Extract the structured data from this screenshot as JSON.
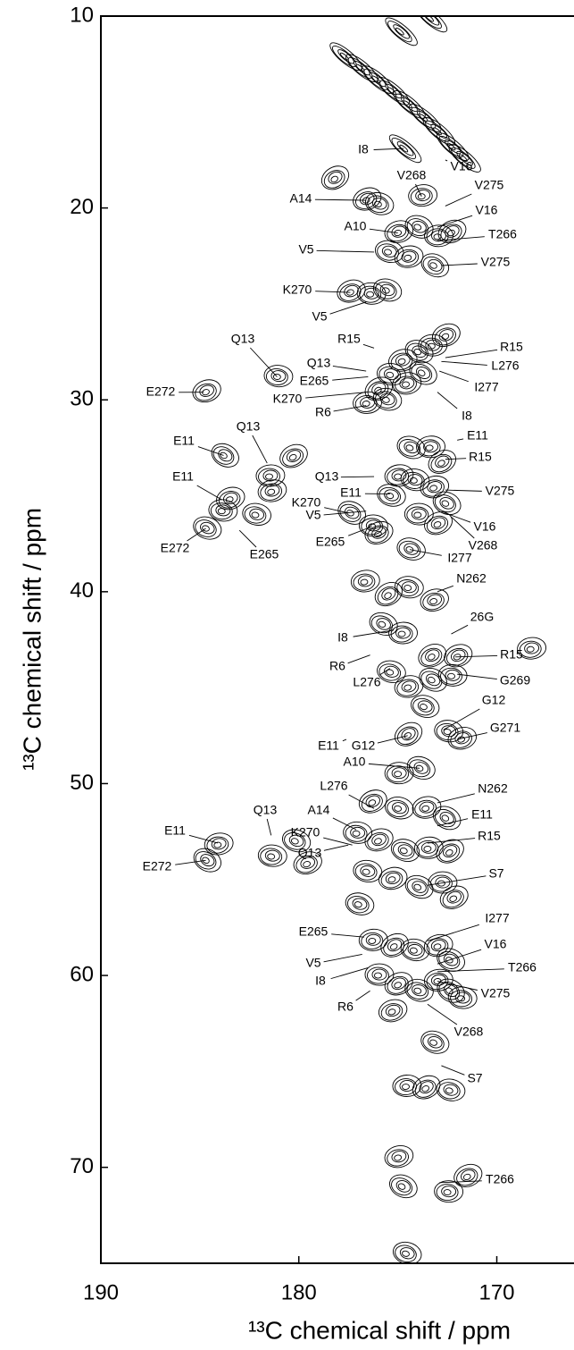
{
  "chart_data": {
    "type": "contour",
    "x_label": "¹³C chemical shift / ppm",
    "y_label": "¹³C chemical shift / ppm",
    "xlim": [
      190,
      166.1
    ],
    "ylim": [
      10,
      75
    ],
    "xticks": [
      190,
      180,
      170
    ],
    "yticks": [
      10,
      20,
      30,
      40,
      50,
      60,
      70
    ],
    "color": "#000000",
    "peaks": [
      {
        "x": 177.7,
        "y": 12.1
      },
      {
        "x": 176.9,
        "y": 12.7
      },
      {
        "x": 176.1,
        "y": 13.3
      },
      {
        "x": 175.3,
        "y": 13.9
      },
      {
        "x": 174.5,
        "y": 14.6
      },
      {
        "x": 173.7,
        "y": 15.3
      },
      {
        "x": 173.0,
        "y": 16.0
      },
      {
        "x": 172.3,
        "y": 16.8
      },
      {
        "x": 171.7,
        "y": 17.4
      },
      {
        "x": 174.7,
        "y": 16.9
      },
      {
        "x": 176.6,
        "y": 19.6
      },
      {
        "x": 176.0,
        "y": 19.8
      },
      {
        "x": 173.8,
        "y": 19.4
      },
      {
        "x": 178.2,
        "y": 18.5
      },
      {
        "x": 174.9,
        "y": 10.8
      },
      {
        "x": 175.0,
        "y": 21.3
      },
      {
        "x": 174.0,
        "y": 21.0
      },
      {
        "x": 173.0,
        "y": 21.5
      },
      {
        "x": 172.3,
        "y": 21.3
      },
      {
        "x": 175.5,
        "y": 22.3
      },
      {
        "x": 174.5,
        "y": 22.6
      },
      {
        "x": 173.2,
        "y": 23.0
      },
      {
        "x": 176.4,
        "y": 24.5
      },
      {
        "x": 177.4,
        "y": 24.4
      },
      {
        "x": 175.6,
        "y": 24.3
      },
      {
        "x": 176.6,
        "y": 30.2
      },
      {
        "x": 176.0,
        "y": 29.5
      },
      {
        "x": 175.4,
        "y": 28.7
      },
      {
        "x": 174.8,
        "y": 28.0
      },
      {
        "x": 174.0,
        "y": 27.5
      },
      {
        "x": 173.3,
        "y": 27.2
      },
      {
        "x": 172.6,
        "y": 26.7
      },
      {
        "x": 175.6,
        "y": 30.0
      },
      {
        "x": 174.6,
        "y": 29.2
      },
      {
        "x": 173.8,
        "y": 28.6
      },
      {
        "x": 181.1,
        "y": 28.8
      },
      {
        "x": 184.7,
        "y": 29.6
      },
      {
        "x": 174.4,
        "y": 32.5
      },
      {
        "x": 173.4,
        "y": 32.5
      },
      {
        "x": 172.8,
        "y": 33.3
      },
      {
        "x": 174.2,
        "y": 34.2
      },
      {
        "x": 173.2,
        "y": 34.6
      },
      {
        "x": 172.6,
        "y": 35.4
      },
      {
        "x": 174.0,
        "y": 36.0
      },
      {
        "x": 173.0,
        "y": 36.5
      },
      {
        "x": 175.4,
        "y": 35.0
      },
      {
        "x": 175.0,
        "y": 34.0
      },
      {
        "x": 183.8,
        "y": 32.9
      },
      {
        "x": 183.9,
        "y": 35.8
      },
      {
        "x": 183.5,
        "y": 35.2
      },
      {
        "x": 184.7,
        "y": 36.7
      },
      {
        "x": 181.5,
        "y": 34.0
      },
      {
        "x": 180.3,
        "y": 33.0
      },
      {
        "x": 182.2,
        "y": 36.0
      },
      {
        "x": 181.4,
        "y": 34.8
      },
      {
        "x": 177.4,
        "y": 35.9
      },
      {
        "x": 176.3,
        "y": 36.6
      },
      {
        "x": 176.0,
        "y": 37.0
      },
      {
        "x": 174.4,
        "y": 37.8
      },
      {
        "x": 176.7,
        "y": 39.5
      },
      {
        "x": 175.5,
        "y": 40.2
      },
      {
        "x": 174.5,
        "y": 39.8
      },
      {
        "x": 173.2,
        "y": 40.5
      },
      {
        "x": 175.8,
        "y": 41.7
      },
      {
        "x": 174.8,
        "y": 42.2
      },
      {
        "x": 173.3,
        "y": 43.4
      },
      {
        "x": 175.4,
        "y": 44.2
      },
      {
        "x": 174.5,
        "y": 45.0
      },
      {
        "x": 173.3,
        "y": 44.6
      },
      {
        "x": 172.3,
        "y": 44.4
      },
      {
        "x": 172.0,
        "y": 43.4
      },
      {
        "x": 173.7,
        "y": 46.0
      },
      {
        "x": 168.3,
        "y": 43.0
      },
      {
        "x": 174.5,
        "y": 47.5
      },
      {
        "x": 172.5,
        "y": 47.3
      },
      {
        "x": 171.8,
        "y": 47.7
      },
      {
        "x": 173.9,
        "y": 49.2
      },
      {
        "x": 175.0,
        "y": 49.5
      },
      {
        "x": 176.3,
        "y": 51.0
      },
      {
        "x": 175.0,
        "y": 51.3
      },
      {
        "x": 173.6,
        "y": 51.3
      },
      {
        "x": 172.6,
        "y": 51.8
      },
      {
        "x": 177.1,
        "y": 52.6
      },
      {
        "x": 176.0,
        "y": 53.0
      },
      {
        "x": 174.7,
        "y": 53.5
      },
      {
        "x": 173.5,
        "y": 53.4
      },
      {
        "x": 172.4,
        "y": 53.6
      },
      {
        "x": 176.6,
        "y": 54.6
      },
      {
        "x": 175.3,
        "y": 55.0
      },
      {
        "x": 174.0,
        "y": 55.4
      },
      {
        "x": 172.8,
        "y": 55.2
      },
      {
        "x": 172.2,
        "y": 56.0
      },
      {
        "x": 177.0,
        "y": 56.3
      },
      {
        "x": 184.1,
        "y": 53.2
      },
      {
        "x": 184.7,
        "y": 54.0
      },
      {
        "x": 181.4,
        "y": 53.8
      },
      {
        "x": 179.6,
        "y": 54.2
      },
      {
        "x": 180.2,
        "y": 53.0
      },
      {
        "x": 176.3,
        "y": 58.2
      },
      {
        "x": 175.2,
        "y": 58.5
      },
      {
        "x": 174.2,
        "y": 58.7
      },
      {
        "x": 173.0,
        "y": 58.5
      },
      {
        "x": 172.4,
        "y": 59.2
      },
      {
        "x": 176.0,
        "y": 60.0
      },
      {
        "x": 175.0,
        "y": 60.5
      },
      {
        "x": 174.0,
        "y": 60.8
      },
      {
        "x": 173.0,
        "y": 60.3
      },
      {
        "x": 172.4,
        "y": 60.8
      },
      {
        "x": 171.8,
        "y": 61.2
      },
      {
        "x": 175.3,
        "y": 61.9
      },
      {
        "x": 173.2,
        "y": 63.5
      },
      {
        "x": 174.6,
        "y": 65.8
      },
      {
        "x": 173.6,
        "y": 65.9
      },
      {
        "x": 172.4,
        "y": 66.0
      },
      {
        "x": 175.0,
        "y": 69.5
      },
      {
        "x": 174.8,
        "y": 71.0
      },
      {
        "x": 172.5,
        "y": 71.3
      },
      {
        "x": 171.5,
        "y": 70.5
      },
      {
        "x": 174.6,
        "y": 74.5
      },
      {
        "x": 173.4,
        "y": 10.1
      }
    ],
    "annotations": [
      {
        "text": "I8",
        "x": 174.7,
        "y": 16.9
      },
      {
        "text": "V16",
        "x": 172.6,
        "y": 17.5
      },
      {
        "text": "V268",
        "x": 173.8,
        "y": 19.4
      },
      {
        "text": "V275",
        "x": 172.6,
        "y": 19.9
      },
      {
        "text": "A14",
        "x": 176.6,
        "y": 19.6
      },
      {
        "text": "V16",
        "x": 173.0,
        "y": 21.0
      },
      {
        "text": "A10",
        "x": 175.0,
        "y": 21.3
      },
      {
        "text": "T266",
        "x": 173.0,
        "y": 21.7
      },
      {
        "text": "V5",
        "x": 176.2,
        "y": 22.3
      },
      {
        "text": "V275",
        "x": 172.8,
        "y": 23.0
      },
      {
        "text": "K270",
        "x": 177.4,
        "y": 24.4
      },
      {
        "text": "V5",
        "x": 176.6,
        "y": 24.9
      },
      {
        "text": "Q13",
        "x": 181.1,
        "y": 28.8
      },
      {
        "text": "R15",
        "x": 176.2,
        "y": 27.3
      },
      {
        "text": "R15",
        "x": 172.6,
        "y": 27.8
      },
      {
        "text": "Q13",
        "x": 176.6,
        "y": 28.5
      },
      {
        "text": "L276",
        "x": 172.8,
        "y": 28.0
      },
      {
        "text": "E265",
        "x": 176.5,
        "y": 28.8
      },
      {
        "text": "I277",
        "x": 172.9,
        "y": 28.5
      },
      {
        "text": "E272",
        "x": 184.8,
        "y": 29.6
      },
      {
        "text": "K270",
        "x": 176.6,
        "y": 29.6
      },
      {
        "text": "R6",
        "x": 176.6,
        "y": 30.3
      },
      {
        "text": "I8",
        "x": 173.0,
        "y": 29.6
      },
      {
        "text": "E11",
        "x": 172.0,
        "y": 32.1
      },
      {
        "text": "Q13",
        "x": 181.6,
        "y": 33.3
      },
      {
        "text": "E11",
        "x": 183.8,
        "y": 32.9
      },
      {
        "text": "R15",
        "x": 172.6,
        "y": 33.1
      },
      {
        "text": "Q13",
        "x": 176.2,
        "y": 34.0
      },
      {
        "text": "E11",
        "x": 183.9,
        "y": 35.2
      },
      {
        "text": "K270",
        "x": 177.5,
        "y": 35.9
      },
      {
        "text": "E11",
        "x": 175.4,
        "y": 34.9
      },
      {
        "text": "V275",
        "x": 172.6,
        "y": 34.7
      },
      {
        "text": "V5",
        "x": 176.6,
        "y": 35.8
      },
      {
        "text": "V16",
        "x": 172.6,
        "y": 35.9
      },
      {
        "text": "E272",
        "x": 184.7,
        "y": 36.7
      },
      {
        "text": "E265",
        "x": 183.0,
        "y": 36.8
      },
      {
        "text": "V268",
        "x": 172.3,
        "y": 36.1
      },
      {
        "text": "E265",
        "x": 176.3,
        "y": 36.6
      },
      {
        "text": "I277",
        "x": 174.4,
        "y": 37.8
      },
      {
        "text": "N262",
        "x": 173.0,
        "y": 40.0
      },
      {
        "text": "26G",
        "x": 172.3,
        "y": 42.2
      },
      {
        "text": "I8",
        "x": 175.2,
        "y": 42.0
      },
      {
        "text": "R15",
        "x": 172.1,
        "y": 43.4
      },
      {
        "text": "R6",
        "x": 176.4,
        "y": 43.3
      },
      {
        "text": "L276",
        "x": 175.4,
        "y": 44.0
      },
      {
        "text": "G269",
        "x": 172.0,
        "y": 44.3
      },
      {
        "text": "G12",
        "x": 172.7,
        "y": 47.2
      },
      {
        "text": "G271",
        "x": 172.0,
        "y": 47.7
      },
      {
        "text": "E11",
        "x": 177.6,
        "y": 47.7
      },
      {
        "text": "G12",
        "x": 174.5,
        "y": 47.5
      },
      {
        "text": "A10",
        "x": 173.9,
        "y": 49.2
      },
      {
        "text": "N262",
        "x": 173.0,
        "y": 51.0
      },
      {
        "text": "L276",
        "x": 176.2,
        "y": 51.3
      },
      {
        "text": "E11",
        "x": 173.0,
        "y": 52.2
      },
      {
        "text": "Q13",
        "x": 181.4,
        "y": 52.7
      },
      {
        "text": "A14",
        "x": 177.1,
        "y": 52.4
      },
      {
        "text": "E11",
        "x": 184.1,
        "y": 53.1
      },
      {
        "text": "K270",
        "x": 177.3,
        "y": 53.2
      },
      {
        "text": "R15",
        "x": 173.5,
        "y": 53.1
      },
      {
        "text": "E272",
        "x": 184.7,
        "y": 54.0
      },
      {
        "text": "Q13",
        "x": 177.5,
        "y": 53.2
      },
      {
        "text": "S7",
        "x": 173.5,
        "y": 55.3
      },
      {
        "text": "I277",
        "x": 173.5,
        "y": 58.2
      },
      {
        "text": "E265",
        "x": 176.7,
        "y": 58.0
      },
      {
        "text": "V16",
        "x": 173.0,
        "y": 59.4
      },
      {
        "text": "V5",
        "x": 176.8,
        "y": 58.9
      },
      {
        "text": "T266",
        "x": 173.0,
        "y": 59.8
      },
      {
        "text": "I8",
        "x": 176.5,
        "y": 59.6
      },
      {
        "text": "V275",
        "x": 173.0,
        "y": 60.3
      },
      {
        "text": "R6",
        "x": 176.4,
        "y": 60.8
      },
      {
        "text": "V268",
        "x": 173.5,
        "y": 61.5
      },
      {
        "text": "S7",
        "x": 172.8,
        "y": 64.7
      },
      {
        "text": "T266",
        "x": 172.9,
        "y": 70.8
      }
    ]
  }
}
